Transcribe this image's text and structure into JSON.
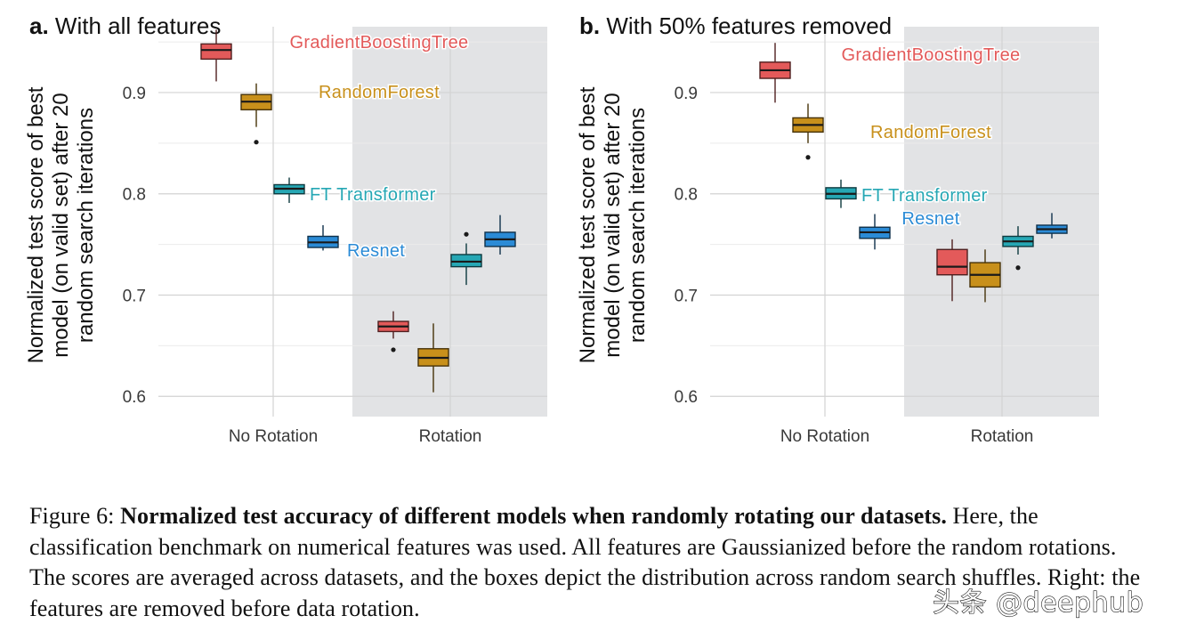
{
  "chart_data": [
    {
      "type": "boxplot",
      "panel_label": "a.",
      "title": "With all features",
      "ylabel": [
        "Normalized test score of best",
        "model (on valid set) after 20",
        "random search iterations"
      ],
      "ylim": [
        0.58,
        0.965
      ],
      "yticks": [
        "0.6",
        "0.7",
        "0.8",
        "0.9"
      ],
      "categories": [
        "No Rotation",
        "Rotation"
      ],
      "shaded_category": "Rotation",
      "series": [
        {
          "name": "GradientBoostingTree",
          "color": "#e35a5a",
          "boxes": [
            {
              "category": "No Rotation",
              "whisker_low": 0.911,
              "q1": 0.933,
              "median": 0.942,
              "q3": 0.948,
              "whisker_high": 0.962,
              "outliers": []
            },
            {
              "category": "Rotation",
              "whisker_low": 0.657,
              "q1": 0.664,
              "median": 0.669,
              "q3": 0.674,
              "whisker_high": 0.684,
              "outliers": [
                0.646
              ]
            }
          ]
        },
        {
          "name": "RandomForest",
          "color": "#c8901b",
          "boxes": [
            {
              "category": "No Rotation",
              "whisker_low": 0.866,
              "q1": 0.883,
              "median": 0.891,
              "q3": 0.898,
              "whisker_high": 0.909,
              "outliers": [
                0.851
              ]
            },
            {
              "category": "Rotation",
              "whisker_low": 0.604,
              "q1": 0.63,
              "median": 0.638,
              "q3": 0.647,
              "whisker_high": 0.672,
              "outliers": []
            }
          ]
        },
        {
          "name": "FT Transformer",
          "color": "#26a7b4",
          "boxes": [
            {
              "category": "No Rotation",
              "whisker_low": 0.791,
              "q1": 0.8,
              "median": 0.805,
              "q3": 0.809,
              "whisker_high": 0.816,
              "outliers": []
            },
            {
              "category": "Rotation",
              "whisker_low": 0.71,
              "q1": 0.728,
              "median": 0.733,
              "q3": 0.74,
              "whisker_high": 0.751,
              "outliers": [
                0.76
              ]
            }
          ]
        },
        {
          "name": "Resnet",
          "color": "#2b8bd6",
          "boxes": [
            {
              "category": "No Rotation",
              "whisker_low": 0.744,
              "q1": 0.747,
              "median": 0.752,
              "q3": 0.758,
              "whisker_high": 0.769,
              "outliers": []
            },
            {
              "category": "Rotation",
              "whisker_low": 0.74,
              "q1": 0.748,
              "median": 0.755,
              "q3": 0.762,
              "whisker_high": 0.779,
              "outliers": []
            }
          ]
        }
      ]
    },
    {
      "type": "boxplot",
      "panel_label": "b.",
      "title": "With 50% features removed",
      "ylabel": [
        "Normalized test score of best",
        "model (on valid set) after 20",
        "random search iterations"
      ],
      "ylim": [
        0.58,
        0.965
      ],
      "yticks": [
        "0.6",
        "0.7",
        "0.8",
        "0.9"
      ],
      "categories": [
        "No Rotation",
        "Rotation"
      ],
      "shaded_category": "Rotation",
      "series": [
        {
          "name": "GradientBoostingTree",
          "color": "#e35a5a",
          "boxes": [
            {
              "category": "No Rotation",
              "whisker_low": 0.89,
              "q1": 0.914,
              "median": 0.922,
              "q3": 0.93,
              "whisker_high": 0.949,
              "outliers": []
            },
            {
              "category": "Rotation",
              "whisker_low": 0.694,
              "q1": 0.72,
              "median": 0.728,
              "q3": 0.745,
              "whisker_high": 0.755,
              "outliers": []
            }
          ]
        },
        {
          "name": "RandomForest",
          "color": "#c8901b",
          "boxes": [
            {
              "category": "No Rotation",
              "whisker_low": 0.85,
              "q1": 0.861,
              "median": 0.868,
              "q3": 0.875,
              "whisker_high": 0.889,
              "outliers": [
                0.836
              ]
            },
            {
              "category": "Rotation",
              "whisker_low": 0.693,
              "q1": 0.708,
              "median": 0.72,
              "q3": 0.732,
              "whisker_high": 0.745,
              "outliers": []
            }
          ]
        },
        {
          "name": "FT Transformer",
          "color": "#26a7b4",
          "boxes": [
            {
              "category": "No Rotation",
              "whisker_low": 0.786,
              "q1": 0.795,
              "median": 0.8,
              "q3": 0.806,
              "whisker_high": 0.814,
              "outliers": []
            },
            {
              "category": "Rotation",
              "whisker_low": 0.74,
              "q1": 0.748,
              "median": 0.753,
              "q3": 0.758,
              "whisker_high": 0.768,
              "outliers": [
                0.727
              ]
            }
          ]
        },
        {
          "name": "Resnet",
          "color": "#2b8bd6",
          "boxes": [
            {
              "category": "No Rotation",
              "whisker_low": 0.745,
              "q1": 0.756,
              "median": 0.762,
              "q3": 0.767,
              "whisker_high": 0.78,
              "outliers": []
            },
            {
              "category": "Rotation",
              "whisker_low": 0.756,
              "q1": 0.761,
              "median": 0.765,
              "q3": 0.769,
              "whisker_high": 0.781,
              "outliers": []
            }
          ]
        }
      ]
    }
  ],
  "caption": {
    "prefix": "Figure 6: ",
    "bold": "Normalized test accuracy of different models when randomly rotating our datasets.",
    "rest": " Here, the classification benchmark on numerical features was used. All features are Gaussianized before the random rotations.  The scores are averaged across datasets, and the boxes depict the distribution across random search shuffles. Right: the features are removed before data rotation."
  },
  "watermark": "头条 @deephub"
}
